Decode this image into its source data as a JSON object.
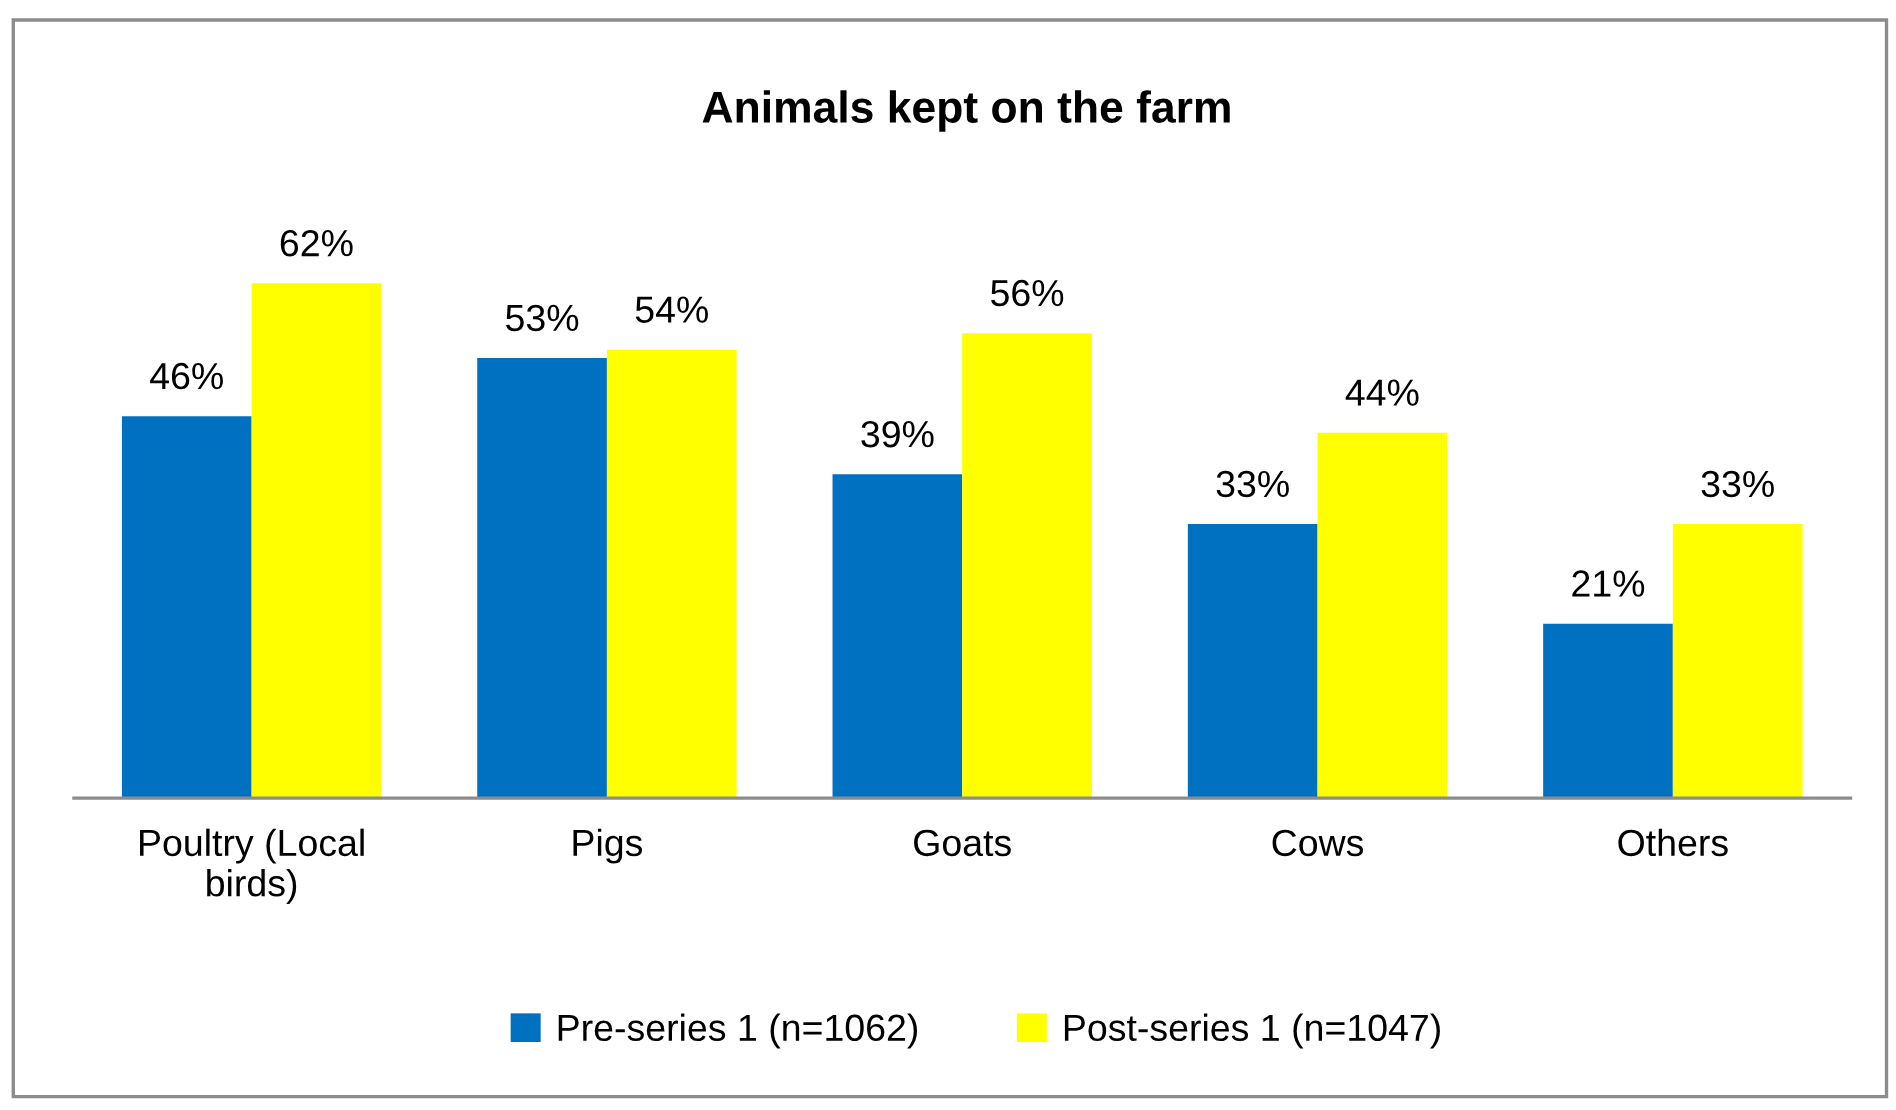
{
  "chart_data": {
    "type": "bar",
    "title": "Animals kept on the farm",
    "categories": [
      "Poultry (Local birds)",
      "Pigs",
      "Goats",
      "Cows",
      "Others"
    ],
    "series": [
      {
        "name": "Pre-series 1 (n=1062)",
        "color": "#0070c0",
        "values": [
          46,
          53,
          39,
          33,
          21
        ],
        "value_labels": [
          "46%",
          "53%",
          "39%",
          "33%",
          "21%"
        ]
      },
      {
        "name": "Post-series 1 (n=1047)",
        "color": "#ffff00",
        "values": [
          62,
          54,
          56,
          44,
          33
        ],
        "value_labels": [
          "62%",
          "54%",
          "56%",
          "44%",
          "33%"
        ]
      }
    ],
    "legend": "bottom",
    "grid": false,
    "tick_labels": "x"
  }
}
